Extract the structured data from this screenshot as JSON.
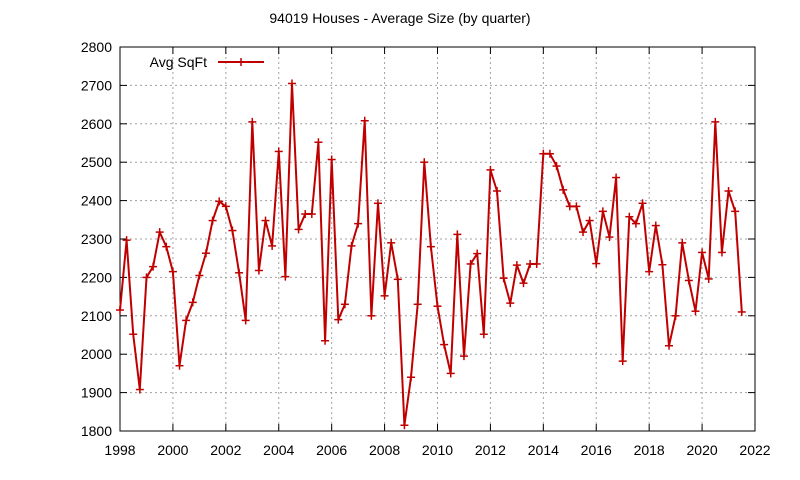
{
  "chart_data": {
    "type": "line",
    "title": "94019 Houses - Average Size (by quarter)",
    "xlabel": "",
    "ylabel": "",
    "xlim": [
      1998,
      2022
    ],
    "ylim": [
      1800,
      2800
    ],
    "x_ticks": [
      1998,
      2000,
      2002,
      2004,
      2006,
      2008,
      2010,
      2012,
      2014,
      2016,
      2018,
      2020,
      2022
    ],
    "y_ticks": [
      1800,
      1900,
      2000,
      2100,
      2200,
      2300,
      2400,
      2500,
      2600,
      2700,
      2800
    ],
    "x_tick_labels": [
      "1998",
      "2000",
      "2002",
      "2004",
      "2006",
      "2008",
      "2010",
      "2012",
      "2014",
      "2016",
      "2018",
      "2020",
      "2022"
    ],
    "y_tick_labels": [
      "1800",
      "1900",
      "2000",
      "2100",
      "2200",
      "2300",
      "2400",
      "2500",
      "2600",
      "2700",
      "2800"
    ],
    "grid": true,
    "legend_position": "top-left",
    "series": [
      {
        "name": "Avg SqFt",
        "color": "#c00000",
        "marker": "plus",
        "x": [
          1998.0,
          1998.25,
          1998.5,
          1998.75,
          1999.0,
          1999.25,
          1999.5,
          1999.75,
          2000.0,
          2000.25,
          2000.5,
          2000.75,
          2001.0,
          2001.25,
          2001.5,
          2001.75,
          2002.0,
          2002.25,
          2002.5,
          2002.75,
          2003.0,
          2003.25,
          2003.5,
          2003.75,
          2004.0,
          2004.25,
          2004.5,
          2004.75,
          2005.0,
          2005.25,
          2005.5,
          2005.75,
          2006.0,
          2006.25,
          2006.5,
          2006.75,
          2007.0,
          2007.25,
          2007.5,
          2007.75,
          2008.0,
          2008.25,
          2008.5,
          2008.75,
          2009.0,
          2009.25,
          2009.5,
          2009.75,
          2010.0,
          2010.25,
          2010.5,
          2010.75,
          2011.0,
          2011.25,
          2011.5,
          2011.75,
          2012.0,
          2012.25,
          2012.5,
          2012.75,
          2013.0,
          2013.25,
          2013.5,
          2013.75,
          2014.0,
          2014.25,
          2014.5,
          2014.75,
          2015.0,
          2015.25,
          2015.5,
          2015.75,
          2016.0,
          2016.25,
          2016.5,
          2016.75,
          2017.0,
          2017.25,
          2017.5,
          2017.75,
          2018.0,
          2018.25,
          2018.5,
          2018.75,
          2019.0,
          2019.25,
          2019.5,
          2019.75,
          2020.0,
          2020.25,
          2020.5,
          2020.75,
          2021.0,
          2021.25,
          2021.5
        ],
        "y": [
          2115,
          2297,
          2052,
          1908,
          2200,
          2228,
          2318,
          2280,
          2215,
          1970,
          2088,
          2135,
          2205,
          2263,
          2348,
          2398,
          2385,
          2322,
          2212,
          2088,
          2605,
          2218,
          2348,
          2282,
          2528,
          2202,
          2705,
          2325,
          2365,
          2365,
          2552,
          2035,
          2507,
          2090,
          2130,
          2282,
          2340,
          2608,
          2100,
          2393,
          2152,
          2290,
          2195,
          1815,
          1940,
          2130,
          2500,
          2280,
          2125,
          2025,
          1950,
          2312,
          1995,
          2235,
          2262,
          2052,
          2480,
          2425,
          2198,
          2133,
          2232,
          2185,
          2235,
          2235,
          2522,
          2522,
          2490,
          2428,
          2385,
          2385,
          2318,
          2348,
          2236,
          2372,
          2305,
          2460,
          1982,
          2358,
          2340,
          2393,
          2215,
          2335,
          2233,
          2022,
          2100,
          2290,
          2192,
          2112,
          2265,
          2196,
          2605,
          2265,
          2425,
          2372,
          2110
        ]
      }
    ]
  }
}
